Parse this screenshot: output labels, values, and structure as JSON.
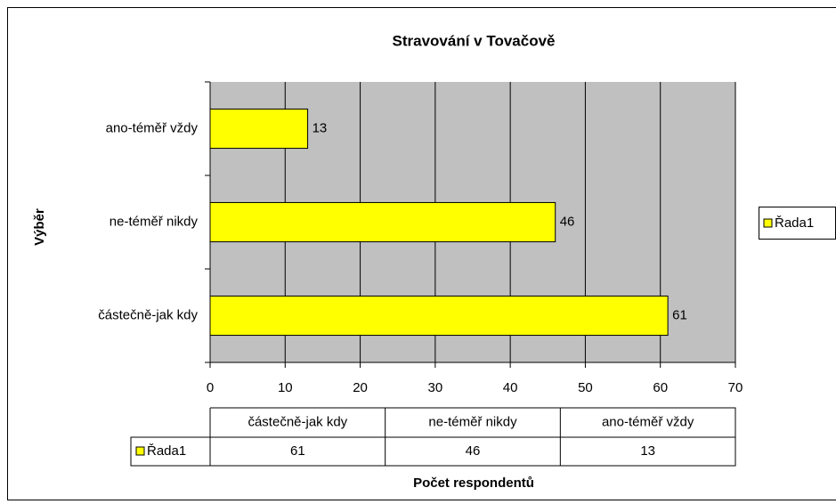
{
  "chart_data": {
    "type": "bar",
    "orientation": "horizontal",
    "title": "Stravování v Tovačově",
    "xlabel": "Počet respondentů",
    "ylabel": "Výběr",
    "categories": [
      "částečně-jak kdy",
      "ne-téměř nikdy",
      "ano-téměř vždy"
    ],
    "series": [
      {
        "name": "Řada1",
        "color": "#ffff00",
        "values": [
          61,
          46,
          13
        ]
      }
    ],
    "xlim": [
      0,
      70
    ],
    "xticks": [
      0,
      10,
      20,
      30,
      40,
      50,
      60,
      70
    ],
    "grid": true,
    "legend": "right",
    "data_table": true
  }
}
